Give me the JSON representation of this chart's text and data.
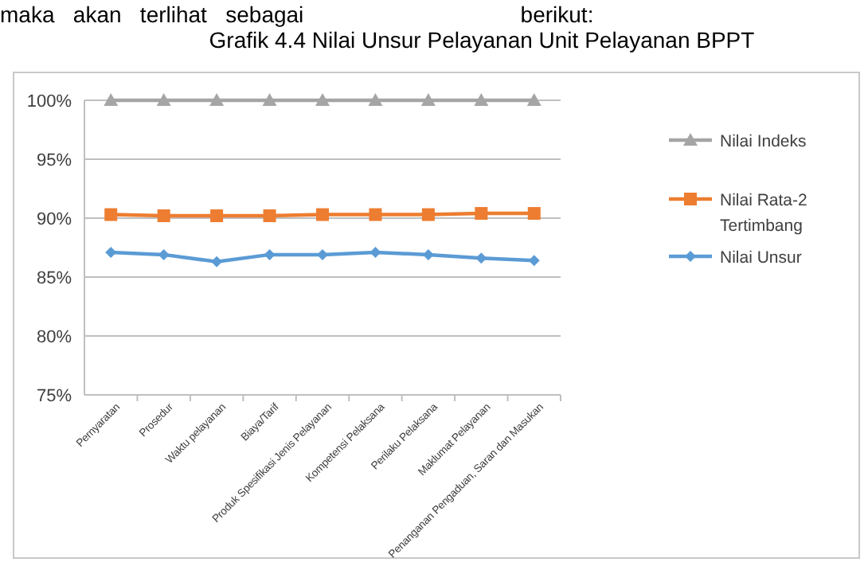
{
  "chart_data": {
    "type": "line",
    "title": "Grafik 4.4  Nilai Unsur Pelayanan Unit Pelayanan BPPT",
    "annotations": [
      "maka   akan   terlihat   sebagai                                   berikut:"
    ],
    "categories": [
      "Pernyaratan",
      "Prosedur",
      "Waktu pelayanan",
      "Biaya/Tarif",
      "Produk Spesifikasi Jenis Pelayanan",
      "Kompetensi Pelaksana",
      "Perilaku Pelaksana",
      "Maklumat Pelayanan",
      "Penanganan Pengaduan, Saran dan Masukan"
    ],
    "series": [
      {
        "name": "Nilai Indeks",
        "color": "#a5a5a5",
        "marker": "triangle",
        "values": [
          100,
          100,
          100,
          100,
          100,
          100,
          100,
          100,
          100
        ]
      },
      {
        "name": "Nilai Rata-2 Tertimbang",
        "color": "#ed7d31",
        "marker": "square",
        "values": [
          90.3,
          90.2,
          90.2,
          90.2,
          90.3,
          90.3,
          90.3,
          90.4,
          90.4
        ]
      },
      {
        "name": "Nilai Unsur",
        "color": "#5b9bd5",
        "marker": "diamond",
        "values": [
          87.1,
          86.9,
          86.3,
          86.9,
          86.9,
          87.1,
          86.9,
          86.6,
          86.4
        ]
      }
    ],
    "ylim": [
      75,
      100
    ],
    "yticks": [
      {
        "value": 75,
        "label": "75%"
      },
      {
        "value": 80,
        "label": "80%"
      },
      {
        "value": 85,
        "label": "85%"
      },
      {
        "value": 90,
        "label": "90%"
      },
      {
        "value": 95,
        "label": "95%"
      },
      {
        "value": 100,
        "label": "100%"
      }
    ],
    "grid": "y",
    "legend": "right"
  }
}
